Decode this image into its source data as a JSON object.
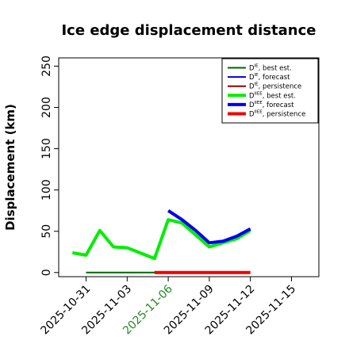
{
  "chart_data": {
    "type": "line",
    "title": "Ice edge displacement distance",
    "xlabel": "",
    "ylabel": "Displacement (km)",
    "ylim": [
      -5,
      260
    ],
    "yticks": [
      0,
      50,
      100,
      150,
      200,
      250
    ],
    "xlim": [
      "2025-10-29",
      "2025-11-17"
    ],
    "xticks": [
      {
        "date": "2025-10-31",
        "label": "2025-10-31",
        "color": "#000000"
      },
      {
        "date": "2025-11-03",
        "label": "2025-11-03",
        "color": "#000000"
      },
      {
        "date": "2025-11-06",
        "label": "2025-11-06",
        "color": "#228B22"
      },
      {
        "date": "2025-11-09",
        "label": "2025-11-09",
        "color": "#000000"
      },
      {
        "date": "2025-11-12",
        "label": "2025-11-12",
        "color": "#000000"
      },
      {
        "date": "2025-11-15",
        "label": "2025-11-15",
        "color": "#000000"
      }
    ],
    "grid": false,
    "legend_position": "top-right",
    "series": [
      {
        "name_base": "D",
        "name_sup": "IE",
        "name_suffix": ", best est.",
        "color": "#006400",
        "width": "thin",
        "points": [
          [
            "2025-10-31",
            0
          ],
          [
            "2025-11-06",
            0
          ]
        ]
      },
      {
        "name_base": "D",
        "name_sup": "IE",
        "name_suffix": ", forecast",
        "color": "#0000CC",
        "width": "thin",
        "points": []
      },
      {
        "name_base": "D",
        "name_sup": "IE",
        "name_suffix": ", persistence",
        "color": "#8B0000",
        "width": "thin",
        "points": []
      },
      {
        "name_base": "D",
        "name_sup": "IIEE",
        "name_suffix": ", best est.",
        "color": "#00EE00",
        "width": "thick",
        "points": [
          [
            "2025-10-30",
            24
          ],
          [
            "2025-10-31",
            21
          ],
          [
            "2025-11-01",
            51
          ],
          [
            "2025-11-02",
            31
          ],
          [
            "2025-11-03",
            30
          ],
          [
            "2025-11-05",
            17
          ],
          [
            "2025-11-06",
            64
          ],
          [
            "2025-11-07",
            60
          ],
          [
            "2025-11-09",
            31
          ],
          [
            "2025-11-11",
            41
          ],
          [
            "2025-11-12",
            51
          ]
        ]
      },
      {
        "name_base": "D",
        "name_sup": "IIEE",
        "name_suffix": ", forecast",
        "color": "#0000EE",
        "width": "thick",
        "points": [
          [
            "2025-11-06",
            75
          ],
          [
            "2025-11-07",
            64
          ],
          [
            "2025-11-08",
            51
          ],
          [
            "2025-11-09",
            36
          ],
          [
            "2025-11-10",
            38
          ],
          [
            "2025-11-11",
            44
          ],
          [
            "2025-11-12",
            53
          ]
        ]
      },
      {
        "name_base": "D",
        "name_sup": "IIEE",
        "name_suffix": ", persistence",
        "color": "#EE0000",
        "width": "thick",
        "points": [
          [
            "2025-11-05",
            0
          ],
          [
            "2025-11-12",
            0
          ]
        ]
      }
    ]
  }
}
